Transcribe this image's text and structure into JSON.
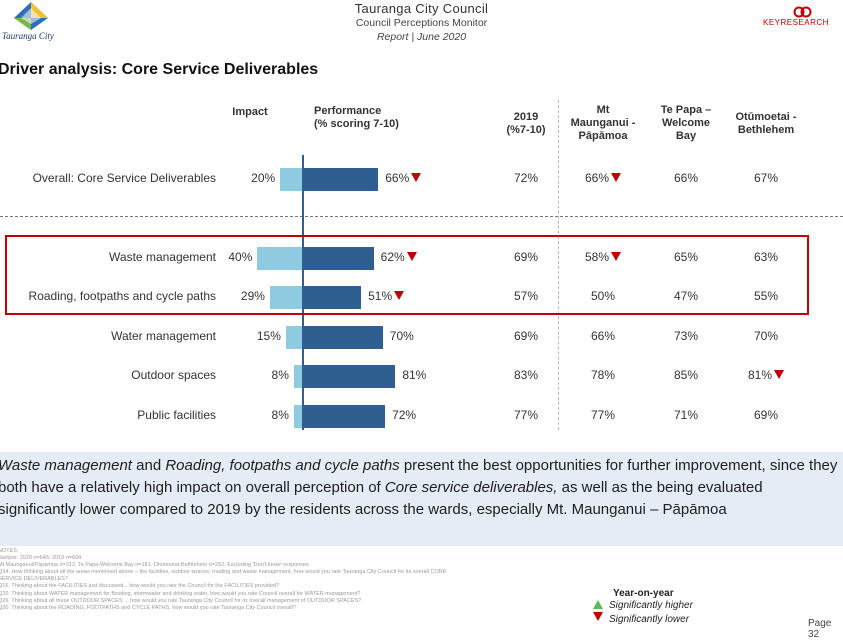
{
  "header": {
    "title": "Tauranga City Council",
    "subtitle": "Council Perceptions Monitor",
    "report_line": "Report | June 2020",
    "left_logo_text": "Tauranga City",
    "right_logo_text": "KEYRESEARCH"
  },
  "page_title": "Driver analysis: Core Service Deliverables",
  "colors": {
    "impact_bar": "#8fcbe0",
    "performance_bar": "#2f5e91",
    "significantly_lower": "#c00000",
    "significantly_higher": "#5cb85c",
    "highlight_box": "#c00000",
    "summary_background": "#e4edf5"
  },
  "chart_data": {
    "type": "bar",
    "columns": {
      "impact": "Impact",
      "performance_line1": "Performance",
      "performance_line2": "(% scoring 7-10)",
      "y2019_line1": "2019",
      "y2019_line2": "(%7-10)",
      "ward1_line1": "Mt",
      "ward1_line2": "Maunganui -",
      "ward1_line3": "Pāpāmoa",
      "ward2_line1": "Te Papa –",
      "ward2_line2": "Welcome",
      "ward2_line3": "Bay",
      "ward3_line1": "Otūmoetai -",
      "ward3_line2": "Bethlehem"
    },
    "rows": [
      {
        "label": "Overall: Core Service Deliverables",
        "impact": 20,
        "impact_label": "20%",
        "performance": 66,
        "performance_label": "66%",
        "performance_sig_lower": true,
        "y2019": "72%",
        "ward1": "66%",
        "ward1_sig_lower": true,
        "ward2": "66%",
        "ward3": "67%",
        "ward3_sig_lower": false
      },
      {
        "label": "Waste management",
        "impact": 40,
        "impact_label": "40%",
        "performance": 62,
        "performance_label": "62%",
        "performance_sig_lower": true,
        "y2019": "69%",
        "ward1": "58%",
        "ward1_sig_lower": true,
        "ward2": "65%",
        "ward3": "63%",
        "ward3_sig_lower": false
      },
      {
        "label": "Roading, footpaths and cycle paths",
        "impact": 29,
        "impact_label": "29%",
        "performance": 51,
        "performance_label": "51%",
        "performance_sig_lower": true,
        "y2019": "57%",
        "ward1": "50%",
        "ward1_sig_lower": false,
        "ward2": "47%",
        "ward3": "55%",
        "ward3_sig_lower": false
      },
      {
        "label": "Water management",
        "impact": 15,
        "impact_label": "15%",
        "performance": 70,
        "performance_label": "70%",
        "performance_sig_lower": false,
        "y2019": "69%",
        "ward1": "66%",
        "ward1_sig_lower": false,
        "ward2": "73%",
        "ward3": "70%",
        "ward3_sig_lower": false
      },
      {
        "label": "Outdoor spaces",
        "impact": 8,
        "impact_label": "8%",
        "performance": 81,
        "performance_label": "81%",
        "performance_sig_lower": false,
        "y2019": "83%",
        "ward1": "78%",
        "ward1_sig_lower": false,
        "ward2": "85%",
        "ward3": "81%",
        "ward3_sig_lower": true
      },
      {
        "label": "Public facilities",
        "impact": 8,
        "impact_label": "8%",
        "performance": 72,
        "performance_label": "72%",
        "performance_sig_lower": false,
        "y2019": "77%",
        "ward1": "77%",
        "ward1_sig_lower": false,
        "ward2": "71%",
        "ward3": "69%",
        "ward3_sig_lower": false
      }
    ]
  },
  "summary": {
    "part1_italic": "Waste management",
    "part2": " and ",
    "part3_italic": "Roading, footpaths and cycle paths",
    "part4": " present the best opportunities for further improvement, since they both have a relatively high impact on overall perception of ",
    "part5_italic": "Core service deliverables,",
    "part6": " as well as the being evaluated significantly lower compared to 2019 by the residents across the wards, especially Mt. Maunganui – Pāpāmoa"
  },
  "footnotes": [
    "NOTES:",
    "Sample: 2020 n=645; 2019 n=604.",
    "Mt Maunganui/Pāpāmoa n=212, Te Papa-Welcome Bay n=181, Otūmoetai-Bethlehem n=252. Excluding 'Don't know' responses",
    "Q34. How thinking about all the areas mentioned above – the facilities, outdoor spaces, roading and waste management, how would you rate Tauranga City Council for its overall CORE",
    "SERVICE DELIVERABLES?",
    "Q16. Thinking about the FACILITIES just discussed... how would you rate the Council for the FACILITIES provided?",
    "Q20. Thinking about WATER management for flooding, stormwater and drinking water, how would you rate Council overall for WATER management?",
    "Q26. Thinking about all these OUTDOOR SPACES ... how would you rate Tauranga City Council for its overall management of OUTDOOR SPACES?",
    "Q30. Thinking about the ROADING, FOOTPATHS and CYCLE PATHS, how would you rate Tauranga City Council overall?"
  ],
  "legend": {
    "title": "Year-on-year",
    "higher": "Significantly higher",
    "lower": "Significantly lower"
  },
  "page_number": "Page 32"
}
